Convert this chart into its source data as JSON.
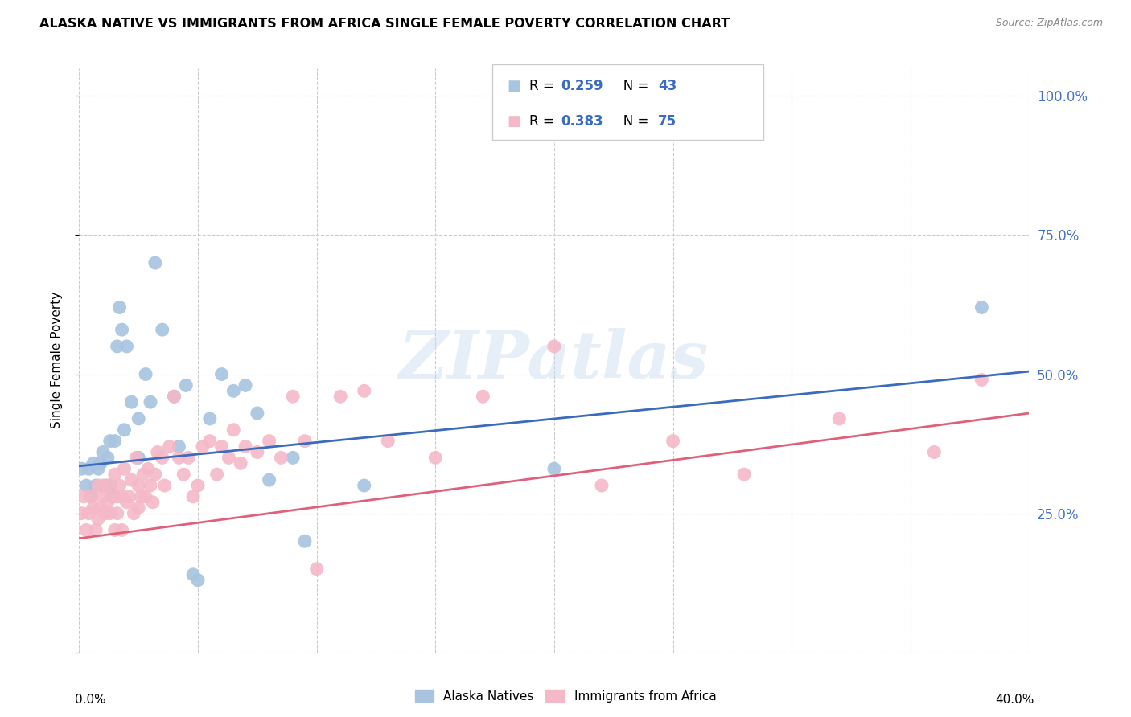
{
  "title": "ALASKA NATIVE VS IMMIGRANTS FROM AFRICA SINGLE FEMALE POVERTY CORRELATION CHART",
  "source": "Source: ZipAtlas.com",
  "ylabel": "Single Female Poverty",
  "legend_label1": "Alaska Natives",
  "legend_label2": "Immigrants from Africa",
  "blue_scatter_color": "#a8c4e0",
  "pink_scatter_color": "#f4b8c8",
  "blue_line_color": "#3a6bbf",
  "pink_line_color": "#e0607a",
  "r_blue": "0.259",
  "n_blue": "43",
  "r_pink": "0.383",
  "n_pink": "75",
  "watermark": "ZIPatlas",
  "alaska_x": [
    0.001,
    0.003,
    0.004,
    0.005,
    0.006,
    0.007,
    0.008,
    0.009,
    0.01,
    0.011,
    0.012,
    0.013,
    0.013,
    0.014,
    0.015,
    0.016,
    0.017,
    0.018,
    0.019,
    0.02,
    0.022,
    0.025,
    0.025,
    0.028,
    0.03,
    0.032,
    0.035,
    0.04,
    0.042,
    0.045,
    0.048,
    0.05,
    0.055,
    0.06,
    0.065,
    0.07,
    0.075,
    0.08,
    0.09,
    0.095,
    0.12,
    0.2,
    0.38
  ],
  "alaska_y": [
    0.33,
    0.3,
    0.33,
    0.28,
    0.34,
    0.3,
    0.33,
    0.34,
    0.36,
    0.3,
    0.35,
    0.38,
    0.3,
    0.28,
    0.38,
    0.55,
    0.62,
    0.58,
    0.4,
    0.55,
    0.45,
    0.35,
    0.42,
    0.5,
    0.45,
    0.7,
    0.58,
    0.46,
    0.37,
    0.48,
    0.14,
    0.13,
    0.42,
    0.5,
    0.47,
    0.48,
    0.43,
    0.31,
    0.35,
    0.2,
    0.3,
    0.33,
    0.62
  ],
  "africa_x": [
    0.001,
    0.002,
    0.003,
    0.004,
    0.005,
    0.006,
    0.007,
    0.008,
    0.008,
    0.009,
    0.01,
    0.01,
    0.011,
    0.012,
    0.012,
    0.013,
    0.014,
    0.015,
    0.015,
    0.016,
    0.016,
    0.017,
    0.018,
    0.018,
    0.019,
    0.02,
    0.021,
    0.022,
    0.023,
    0.024,
    0.025,
    0.025,
    0.026,
    0.027,
    0.028,
    0.029,
    0.03,
    0.031,
    0.032,
    0.033,
    0.035,
    0.036,
    0.038,
    0.04,
    0.042,
    0.044,
    0.046,
    0.048,
    0.05,
    0.052,
    0.055,
    0.058,
    0.06,
    0.063,
    0.065,
    0.068,
    0.07,
    0.075,
    0.08,
    0.085,
    0.09,
    0.095,
    0.1,
    0.11,
    0.12,
    0.13,
    0.15,
    0.17,
    0.2,
    0.22,
    0.25,
    0.28,
    0.32,
    0.36,
    0.38
  ],
  "africa_y": [
    0.25,
    0.28,
    0.22,
    0.25,
    0.28,
    0.26,
    0.22,
    0.24,
    0.3,
    0.26,
    0.28,
    0.3,
    0.25,
    0.27,
    0.3,
    0.25,
    0.28,
    0.22,
    0.32,
    0.28,
    0.25,
    0.3,
    0.28,
    0.22,
    0.33,
    0.27,
    0.28,
    0.31,
    0.25,
    0.35,
    0.3,
    0.26,
    0.28,
    0.32,
    0.28,
    0.33,
    0.3,
    0.27,
    0.32,
    0.36,
    0.35,
    0.3,
    0.37,
    0.46,
    0.35,
    0.32,
    0.35,
    0.28,
    0.3,
    0.37,
    0.38,
    0.32,
    0.37,
    0.35,
    0.4,
    0.34,
    0.37,
    0.36,
    0.38,
    0.35,
    0.46,
    0.38,
    0.15,
    0.46,
    0.47,
    0.38,
    0.35,
    0.46,
    0.55,
    0.3,
    0.38,
    0.32,
    0.42,
    0.36,
    0.49
  ],
  "xlim": [
    0.0,
    0.4
  ],
  "ylim": [
    0.0,
    1.05
  ],
  "y_ticks": [
    0.0,
    0.25,
    0.5,
    0.75,
    1.0
  ],
  "y_tick_labels": [
    "",
    "25.0%",
    "50.0%",
    "75.0%",
    "100.0%"
  ]
}
